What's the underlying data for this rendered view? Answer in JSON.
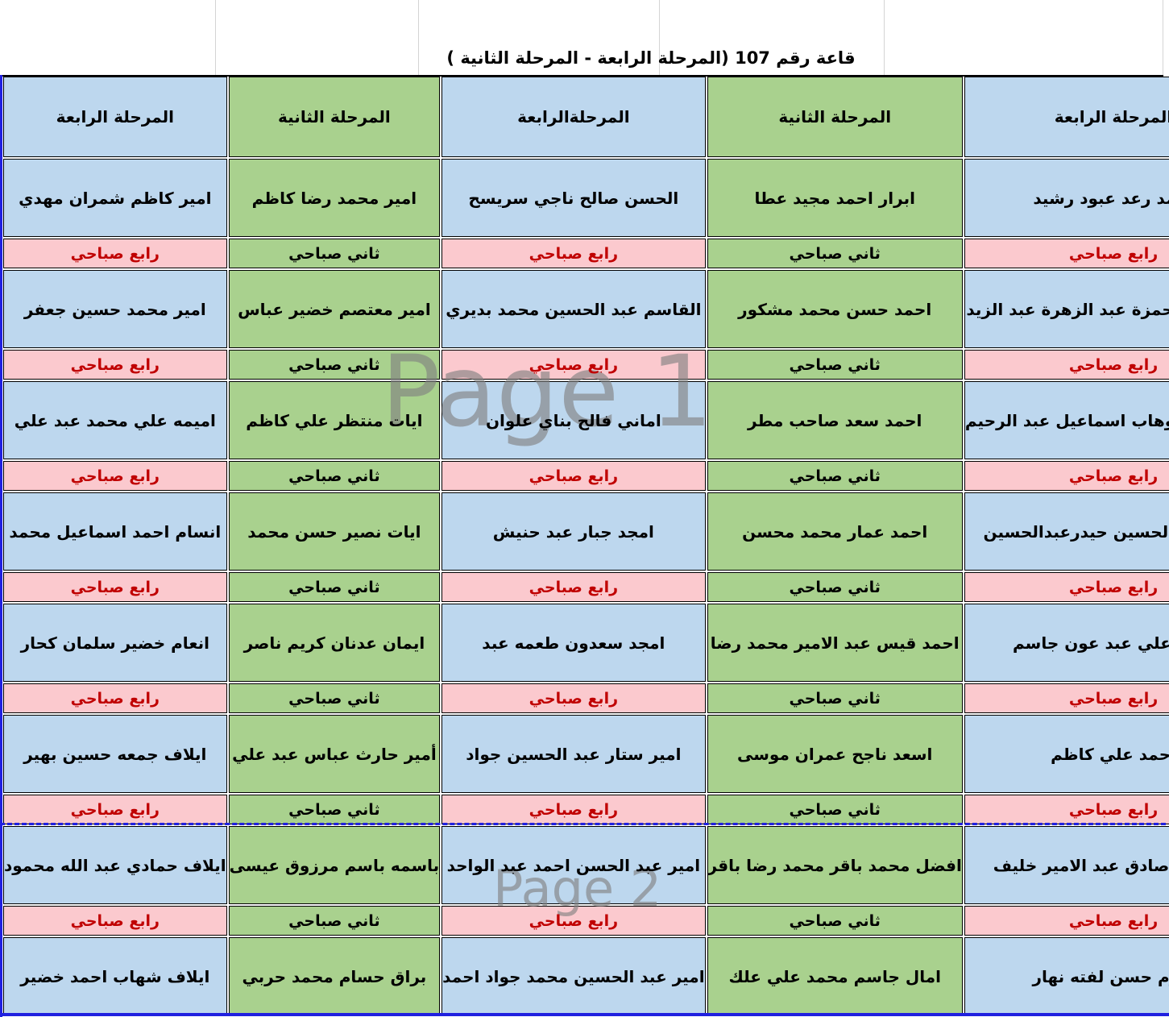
{
  "title": "قاعة رقم 107 (المرحلة الرابعة - المرحلة الثانية )",
  "watermarks": {
    "page1": "Page 1",
    "page2": "Page 2"
  },
  "colors": {
    "blue_fill": "#BDD7EE",
    "green_fill": "#A9D18E",
    "pink_fill": "#FBC9CE",
    "status_red_text": "#C00000",
    "page_break_blue": "#2020E0",
    "watermark_gray": "#808080"
  },
  "status_labels": {
    "fourth": "رابع صباحي",
    "second": "ثاني صباحي"
  },
  "columns": [
    {
      "stage": "المرحلة الرابعة",
      "type": "fourth",
      "students": [
        {
          "name": "احمد رعد عبود رشيد",
          "status": "رابع صباحي"
        },
        {
          "name": "احمد عبد الحمزة عبد الزهرة عبد الزيد",
          "status": "رابع صباحي"
        },
        {
          "name": "احمد عبد الوهاب اسماعيل عبد الرحيم",
          "status": "رابع صباحي"
        },
        {
          "name": "احمد عبدالحسين حيدرعبدالحسين",
          "status": "رابع صباحي"
        },
        {
          "name": "احمد علي عبد عون جاسم",
          "status": "رابع صباحي"
        },
        {
          "name": "احمد علي كاظم",
          "status": "رابع صباحي"
        },
        {
          "name": "استبرق صادق عبد الامير خليف",
          "status": "رابع صباحي"
        },
        {
          "name": "اكرم حسن لفته نهار",
          "status": null
        }
      ]
    },
    {
      "stage": "المرحلة الثانية",
      "type": "second",
      "students": [
        {
          "name": "ابرار احمد مجيد عطا",
          "status": "ثاني صباحي"
        },
        {
          "name": "احمد حسن محمد مشكور",
          "status": "ثاني صباحي"
        },
        {
          "name": "احمد سعد صاحب مطر",
          "status": "ثاني صباحي"
        },
        {
          "name": "احمد عمار محمد محسن",
          "status": "ثاني صباحي"
        },
        {
          "name": "احمد قيس عبد الامير محمد رضا",
          "status": "ثاني صباحي"
        },
        {
          "name": "اسعد ناجح عمران موسى",
          "status": "ثاني صباحي"
        },
        {
          "name": "افضل محمد باقر محمد رضا باقر",
          "status": "ثاني صباحي"
        },
        {
          "name": "امال جاسم محمد علي علك",
          "status": null
        }
      ]
    },
    {
      "stage": "المرحلةالرابعة",
      "type": "fourth",
      "students": [
        {
          "name": "الحسن صالح ناجي سريسح",
          "status": "رابع صباحي"
        },
        {
          "name": "القاسم عبد الحسين محمد بديري",
          "status": "رابع صباحي"
        },
        {
          "name": "اماني فالح بناي علوان",
          "status": "رابع صباحي"
        },
        {
          "name": "امجد جبار عبد حنيش",
          "status": "رابع صباحي"
        },
        {
          "name": "امجد سعدون طعمه عبد",
          "status": "رابع صباحي"
        },
        {
          "name": "امير ستار عبد الحسين جواد",
          "status": "رابع صباحي"
        },
        {
          "name": "امير عبد الحسن احمد عبد الواحد",
          "status": "رابع صباحي"
        },
        {
          "name": "امير عبد الحسين محمد جواد احمد",
          "status": null
        }
      ]
    },
    {
      "stage": "المرحلة الثانية",
      "type": "second",
      "students": [
        {
          "name": "امير محمد رضا كاظم",
          "status": "ثاني صباحي"
        },
        {
          "name": "امير معتصم خضير عباس",
          "status": "ثاني صباحي"
        },
        {
          "name": "ايات منتظر علي كاظم",
          "status": "ثاني صباحي"
        },
        {
          "name": "ايات نصير حسن محمد",
          "status": "ثاني صباحي"
        },
        {
          "name": "ايمان عدنان كريم ناصر",
          "status": "ثاني صباحي"
        },
        {
          "name": "أمير حارث عباس عبد علي",
          "status": "ثاني صباحي"
        },
        {
          "name": "باسمه باسم مرزوق عيسى",
          "status": "ثاني صباحي"
        },
        {
          "name": "براق حسام محمد حربي",
          "status": null
        }
      ]
    },
    {
      "stage": "المرحلة الرابعة",
      "type": "fourth",
      "students": [
        {
          "name": "امير كاظم شمران مهدي",
          "status": "رابع صباحي"
        },
        {
          "name": "امير محمد حسين جعفر",
          "status": "رابع صباحي"
        },
        {
          "name": "اميمه علي محمد عبد علي",
          "status": "رابع صباحي"
        },
        {
          "name": "انسام احمد اسماعيل محمد",
          "status": "رابع صباحي"
        },
        {
          "name": "انعام خضير سلمان كحار",
          "status": "رابع صباحي"
        },
        {
          "name": "ايلاف جمعه حسين بهير",
          "status": "رابع صباحي"
        },
        {
          "name": "ايلاف حمادي عبد الله محمود",
          "status": "رابع صباحي"
        },
        {
          "name": "ايلاف شهاب احمد خضير",
          "status": null
        }
      ]
    }
  ]
}
